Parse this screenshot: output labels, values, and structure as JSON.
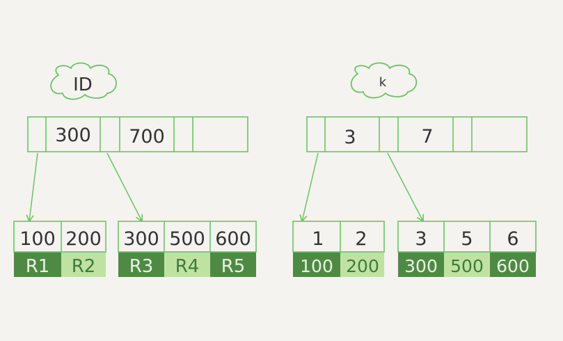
{
  "colors": {
    "background": "#f4f3ef",
    "outline": "#6cc267",
    "text": "#333333",
    "dark_green": "#4f8a45",
    "light_green": "#bfe2a3",
    "light_text": "#3f7a3a",
    "dark_text": "#e8f3df"
  },
  "left_tree": {
    "label": "ID",
    "root_keys": [
      "300",
      "700"
    ],
    "leaves": [
      {
        "keys": [
          "100",
          "200"
        ],
        "values": [
          "R1",
          "R2"
        ]
      },
      {
        "keys": [
          "300",
          "500",
          "600"
        ],
        "values": [
          "R3",
          "R4",
          "R5"
        ]
      }
    ]
  },
  "right_tree": {
    "label": "k",
    "root_keys": [
      "3",
      "7"
    ],
    "leaves": [
      {
        "keys": [
          "1",
          "2"
        ],
        "values": [
          "100",
          "200"
        ]
      },
      {
        "keys": [
          "3",
          "5",
          "6"
        ],
        "values": [
          "300",
          "500",
          "600"
        ]
      }
    ]
  }
}
